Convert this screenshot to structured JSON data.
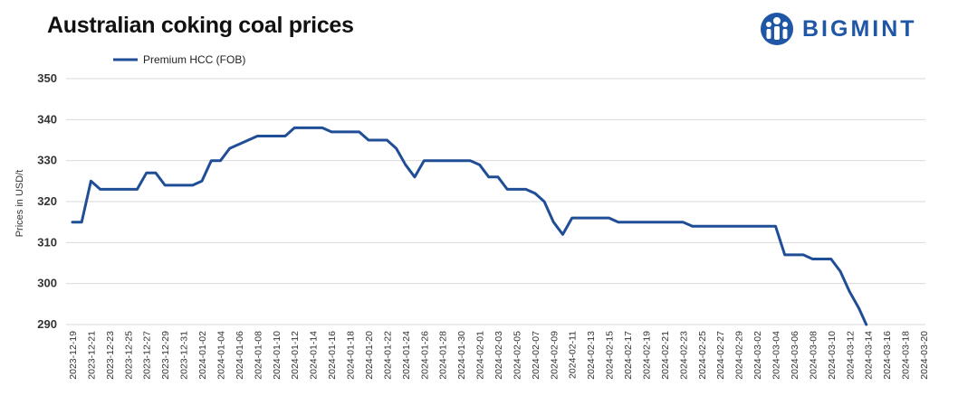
{
  "chart_data": {
    "type": "line",
    "title": "Australian coking coal prices",
    "ylabel": "Prices in USD/t",
    "ylim": [
      290,
      350
    ],
    "yticks": [
      290,
      300,
      310,
      320,
      330,
      340,
      350
    ],
    "grid": true,
    "legend_position": "top-left",
    "x_tick_labels": [
      "2023-12-19",
      "2023-12-21",
      "2023-12-23",
      "2023-12-25",
      "2023-12-27",
      "2023-12-29",
      "2023-12-31",
      "2024-01-02",
      "2024-01-04",
      "2024-01-06",
      "2024-01-08",
      "2024-01-10",
      "2024-01-12",
      "2024-01-14",
      "2024-01-16",
      "2024-01-18",
      "2024-01-20",
      "2024-01-22",
      "2024-01-24",
      "2024-01-26",
      "2024-01-28",
      "2024-01-30",
      "2024-02-01",
      "2024-02-03",
      "2024-02-05",
      "2024-02-07",
      "2024-02-09",
      "2024-02-11",
      "2024-02-13",
      "2024-02-15",
      "2024-02-17",
      "2024-02-19",
      "2024-02-21",
      "2024-02-23",
      "2024-02-25",
      "2024-02-27",
      "2024-02-29",
      "2024-03-02",
      "2024-03-04",
      "2024-03-06",
      "2024-03-08",
      "2024-03-10",
      "2024-03-12",
      "2024-03-14",
      "2024-03-16",
      "2024-03-18",
      "2024-03-20"
    ],
    "series": [
      {
        "name": "Premium HCC (FOB)",
        "color": "#1f4e96",
        "points": [
          [
            "2023-12-19",
            315
          ],
          [
            "2023-12-20",
            315
          ],
          [
            "2023-12-21",
            325
          ],
          [
            "2023-12-22",
            323
          ],
          [
            "2023-12-25",
            323
          ],
          [
            "2023-12-26",
            323
          ],
          [
            "2023-12-27",
            327
          ],
          [
            "2023-12-28",
            327
          ],
          [
            "2023-12-29",
            324
          ],
          [
            "2024-01-01",
            324
          ],
          [
            "2024-01-02",
            325
          ],
          [
            "2024-01-03",
            330
          ],
          [
            "2024-01-04",
            330
          ],
          [
            "2024-01-05",
            333
          ],
          [
            "2024-01-08",
            336
          ],
          [
            "2024-01-11",
            336
          ],
          [
            "2024-01-12",
            338
          ],
          [
            "2024-01-15",
            338
          ],
          [
            "2024-01-16",
            337
          ],
          [
            "2024-01-19",
            337
          ],
          [
            "2024-01-20",
            335
          ],
          [
            "2024-01-22",
            335
          ],
          [
            "2024-01-23",
            333
          ],
          [
            "2024-01-24",
            329
          ],
          [
            "2024-01-25",
            326
          ],
          [
            "2024-01-26",
            330
          ],
          [
            "2024-01-31",
            330
          ],
          [
            "2024-02-01",
            329
          ],
          [
            "2024-02-02",
            326
          ],
          [
            "2024-02-03",
            326
          ],
          [
            "2024-02-04",
            323
          ],
          [
            "2024-02-06",
            323
          ],
          [
            "2024-02-07",
            322
          ],
          [
            "2024-02-08",
            320
          ],
          [
            "2024-02-09",
            315
          ],
          [
            "2024-02-10",
            312
          ],
          [
            "2024-02-11",
            316
          ],
          [
            "2024-02-13",
            316
          ],
          [
            "2024-02-15",
            316
          ],
          [
            "2024-02-16",
            315
          ],
          [
            "2024-02-23",
            315
          ],
          [
            "2024-02-24",
            314
          ],
          [
            "2024-03-04",
            314
          ],
          [
            "2024-03-05",
            307
          ],
          [
            "2024-03-07",
            307
          ],
          [
            "2024-03-08",
            306
          ],
          [
            "2024-03-10",
            306
          ],
          [
            "2024-03-11",
            303
          ],
          [
            "2024-03-12",
            298
          ],
          [
            "2024-03-13",
            294
          ],
          [
            "2024-03-14",
            289
          ]
        ]
      }
    ]
  },
  "branding": {
    "logo_text": "BIGMINT",
    "logo_color": "#1f56a6"
  }
}
